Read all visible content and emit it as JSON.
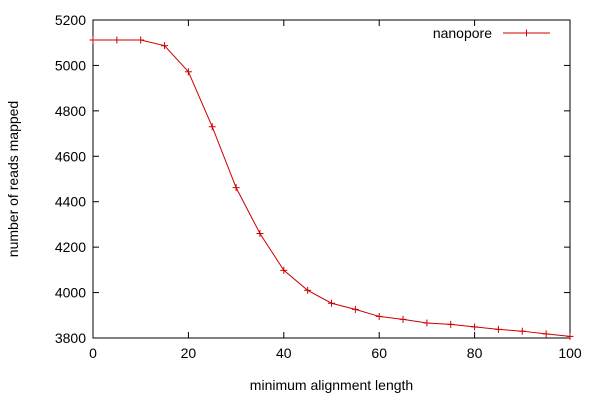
{
  "chart_data": {
    "type": "line",
    "xlabel": "minimum alignment length",
    "ylabel": "number of reads mapped",
    "xlim": [
      0,
      100
    ],
    "ylim": [
      3800,
      5200
    ],
    "xticks": [
      "0",
      "20",
      "40",
      "60",
      "80",
      "100"
    ],
    "yticks": [
      "3800",
      "4000",
      "4200",
      "4400",
      "4600",
      "4800",
      "5000",
      "5200"
    ],
    "grid": false,
    "legend_position": "top-right",
    "series": [
      {
        "name": "nanopore",
        "color": "#cc0000",
        "marker": "plus",
        "x": [
          0,
          5,
          10,
          15,
          20,
          25,
          30,
          35,
          40,
          45,
          50,
          55,
          60,
          65,
          70,
          75,
          80,
          85,
          90,
          95,
          100
        ],
        "y": [
          5112,
          5112,
          5112,
          5087,
          4972,
          4730,
          4462,
          4260,
          4098,
          4010,
          3953,
          3926,
          3895,
          3882,
          3866,
          3860,
          3849,
          3838,
          3830,
          3818,
          3807
        ]
      }
    ]
  }
}
